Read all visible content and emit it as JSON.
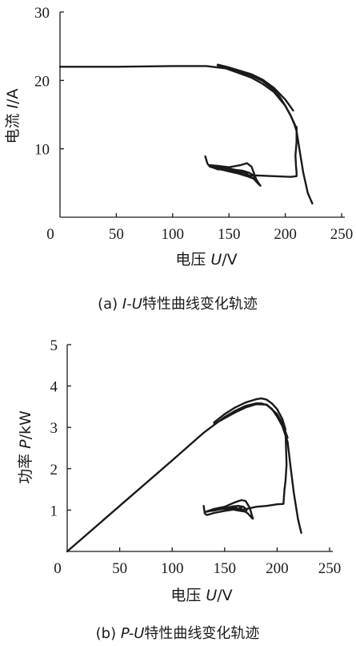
{
  "charts": [
    {
      "id": "iu",
      "caption_prefix": "(a) ",
      "caption_italic": "I-U",
      "caption_suffix": "特性曲线变化轨迹",
      "xlabel_prefix": "电压 ",
      "xlabel_italic": "U",
      "xlabel_suffix": "/V",
      "ylabel_prefix": "电流 ",
      "ylabel_italic": "I",
      "ylabel_suffix": "/A",
      "xticks": [
        "0",
        "50",
        "100",
        "150",
        "200",
        "250"
      ],
      "yticks": [
        "10",
        "20",
        "30"
      ]
    },
    {
      "id": "pu",
      "caption_prefix": "(b) ",
      "caption_italic": "P-U",
      "caption_suffix": "特性曲线变化轨迹",
      "xlabel_prefix": "电压 ",
      "xlabel_italic": "U",
      "xlabel_suffix": "/V",
      "ylabel_prefix": "功率 ",
      "ylabel_italic": "P",
      "ylabel_suffix": "/kW",
      "xticks": [
        "0",
        "50",
        "100",
        "150",
        "200",
        "250"
      ],
      "yticks": [
        "1",
        "2",
        "3",
        "4",
        "5"
      ]
    }
  ],
  "chart_data": [
    {
      "type": "line",
      "title": "(a) I-U特性曲线变化轨迹",
      "xlabel": "电压 U/V",
      "ylabel": "电流 I/A",
      "xlim": [
        0,
        250
      ],
      "ylim": [
        0,
        30
      ],
      "grid": false,
      "series": [
        {
          "x": [
            0,
            50,
            100,
            130,
            150,
            160,
            170,
            180,
            190,
            195,
            200,
            205,
            208,
            210,
            213,
            216,
            220,
            224
          ],
          "y": [
            22.0,
            22.0,
            22.1,
            22.1,
            21.7,
            21.2,
            20.7,
            19.9,
            18.6,
            17.6,
            16.3,
            14.8,
            13.6,
            12.6,
            9.5,
            6.5,
            3.5,
            2.0
          ]
        },
        {
          "x": [
            140,
            150,
            160,
            170,
            180,
            190,
            200,
            205,
            210
          ],
          "y": [
            22.2,
            21.6,
            21.0,
            20.4,
            19.5,
            18.3,
            16.3,
            14.8,
            13.0
          ]
        },
        {
          "x": [
            140,
            150,
            160,
            170,
            180,
            190,
            200,
            207
          ],
          "y": [
            22.3,
            21.9,
            21.4,
            20.9,
            20.1,
            18.9,
            17.2,
            15.6
          ]
        },
        {
          "x": [
            210,
            210,
            209,
            209.5,
            210,
            210,
            205,
            190,
            175,
            165,
            163
          ],
          "y": [
            13.2,
            11.0,
            9.0,
            7.5,
            6.6,
            6.0,
            5.9,
            6.0,
            6.1,
            6.1,
            6.2
          ]
        },
        {
          "x": [
            163,
            160,
            155,
            150,
            145,
            142,
            140,
            137,
            133,
            131,
            129
          ],
          "y": [
            6.2,
            6.4,
            6.5,
            6.7,
            6.9,
            7.0,
            7.0,
            7.2,
            7.4,
            7.8,
            8.9
          ]
        },
        {
          "x": [
            133,
            140,
            150,
            160,
            166,
            170,
            174,
            177,
            178,
            176,
            172,
            167,
            160,
            150,
            140,
            135
          ],
          "y": [
            7.6,
            7.5,
            7.3,
            7.6,
            7.9,
            7.4,
            5.6,
            4.8,
            4.6,
            4.9,
            5.6,
            6.2,
            6.8,
            7.1,
            7.4,
            7.5
          ]
        },
        {
          "x": [
            137,
            145,
            155,
            163,
            168,
            171,
            173,
            171,
            166,
            158,
            150,
            143,
            138
          ],
          "y": [
            7.3,
            7.0,
            6.8,
            6.6,
            6.5,
            6.2,
            5.8,
            5.7,
            6.0,
            6.4,
            6.8,
            7.1,
            7.3
          ]
        },
        {
          "x": [
            145,
            150,
            156,
            162,
            166,
            163,
            157,
            151,
            147
          ],
          "y": [
            7.2,
            7.1,
            6.9,
            6.8,
            6.6,
            6.5,
            6.6,
            6.8,
            7.0
          ]
        }
      ]
    },
    {
      "type": "line",
      "title": "(b) P-U特性曲线变化轨迹",
      "xlabel": "电压 U/V",
      "ylabel": "功率 P/kW",
      "xlim": [
        0,
        250
      ],
      "ylim": [
        0,
        5
      ],
      "grid": false,
      "series": [
        {
          "x": [
            0,
            50,
            100,
            130,
            150,
            160,
            170,
            180,
            185,
            190,
            195,
            200,
            205,
            210,
            213,
            216,
            220,
            223
          ],
          "y": [
            0.0,
            1.1,
            2.2,
            2.87,
            3.25,
            3.4,
            3.52,
            3.58,
            3.58,
            3.54,
            3.45,
            3.26,
            3.03,
            2.65,
            2.0,
            1.4,
            0.77,
            0.45
          ]
        },
        {
          "x": [
            140,
            150,
            160,
            170,
            180,
            190,
            200,
            205,
            210
          ],
          "y": [
            3.08,
            3.22,
            3.36,
            3.48,
            3.56,
            3.55,
            3.32,
            3.1,
            2.75
          ]
        },
        {
          "x": [
            140,
            150,
            160,
            170,
            180,
            185,
            190,
            195,
            200,
            205,
            208
          ],
          "y": [
            3.12,
            3.32,
            3.48,
            3.6,
            3.68,
            3.7,
            3.67,
            3.58,
            3.44,
            3.2,
            2.95
          ]
        },
        {
          "x": [
            208,
            209,
            208,
            207,
            206,
            200,
            190,
            180,
            175,
            165
          ],
          "y": [
            2.9,
            2.1,
            1.7,
            1.5,
            1.15,
            1.14,
            1.1,
            1.08,
            1.05,
            1.0
          ]
        },
        {
          "x": [
            165,
            160,
            150,
            140,
            133,
            131,
            130
          ],
          "y": [
            1.0,
            1.02,
            0.98,
            0.93,
            0.88,
            0.92,
            1.1
          ]
        },
        {
          "x": [
            131,
            140,
            150,
            160,
            166,
            170,
            174,
            176,
            177,
            176,
            172,
            166,
            158,
            150,
            140,
            133
          ],
          "y": [
            0.95,
            1.03,
            1.08,
            1.19,
            1.24,
            1.22,
            1.05,
            0.87,
            0.79,
            0.81,
            0.92,
            1.02,
            1.06,
            1.05,
            1.0,
            0.96
          ]
        },
        {
          "x": [
            138,
            146,
            155,
            163,
            168,
            171,
            170,
            165,
            157,
            149,
            141
          ],
          "y": [
            0.98,
            1.02,
            1.06,
            1.1,
            1.08,
            1.0,
            0.96,
            0.98,
            1.02,
            1.03,
            1.0
          ]
        },
        {
          "x": [
            148,
            153,
            158,
            163,
            166,
            163,
            157,
            151
          ],
          "y": [
            1.04,
            1.06,
            1.09,
            1.1,
            1.06,
            1.02,
            1.02,
            1.03
          ]
        }
      ]
    }
  ]
}
